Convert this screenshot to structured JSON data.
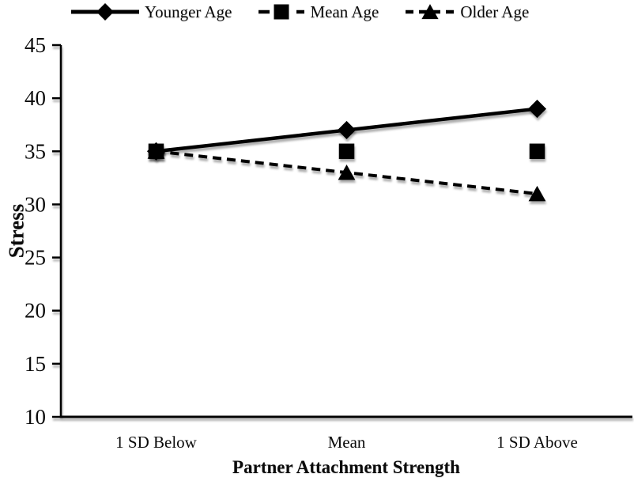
{
  "chart_data": {
    "type": "line",
    "title": "",
    "categories": [
      "1 SD Below",
      "Mean",
      "1 SD Above"
    ],
    "xlabel": "Partner Attachment Strength",
    "ylabel": "Stress",
    "ylim": [
      10,
      45
    ],
    "yticks": [
      10,
      15,
      20,
      25,
      30,
      35,
      40,
      45
    ],
    "grid": false,
    "legend_position": "top",
    "series": [
      {
        "name": "Younger Age",
        "values": [
          35,
          37,
          39
        ],
        "marker": "diamond",
        "line_style": "solid"
      },
      {
        "name": "Mean Age",
        "values": [
          35,
          35,
          35
        ],
        "marker": "square",
        "line_style": "dashed-long"
      },
      {
        "name": "Older Age",
        "values": [
          35,
          33,
          31
        ],
        "marker": "triangle",
        "line_style": "dashed-short"
      }
    ],
    "series_color": "#000000",
    "axis_color": "#000000",
    "background": "#ffffff"
  }
}
